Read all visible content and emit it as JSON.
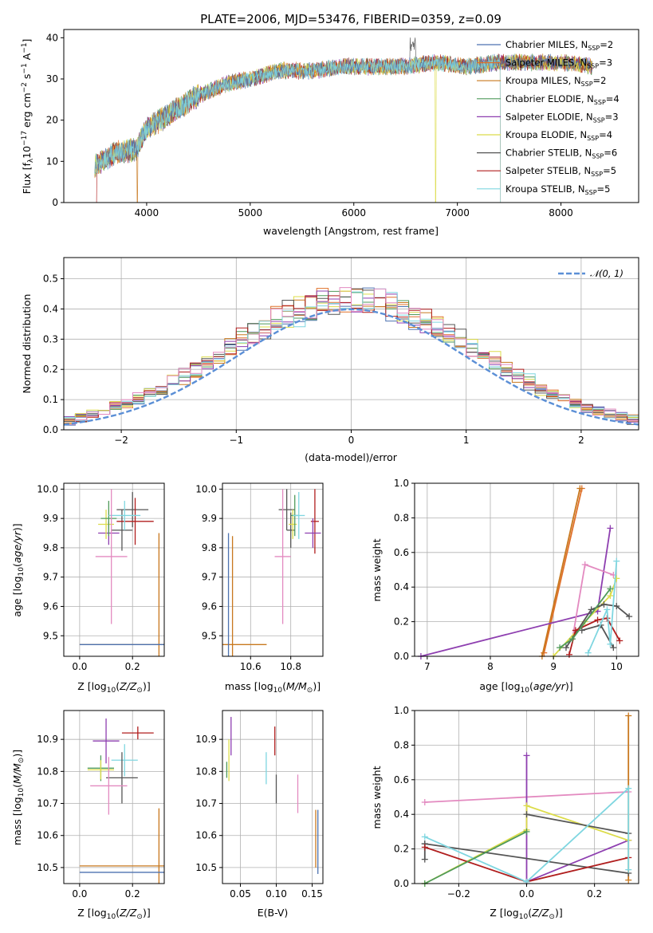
{
  "colors": {
    "Chabrier MILES": "#4c72b0",
    "Salpeter MILES": "#e0702a",
    "Kroupa MILES": "#c8781e",
    "Chabrier ELODIE": "#4f9a5a",
    "Salpeter ELODIE": "#8e3fb0",
    "Kroupa ELODIE": "#dcdc4a",
    "Chabrier STELIB": "#555555",
    "Salpeter STELIB": "#b01e1e",
    "Kroupa STELIB": "#7fd6e0",
    "pink": "#e38ac0",
    "gaussian": "#5b8fd6"
  },
  "legend": [
    {
      "model": "Chabrier MILES",
      "n": "2"
    },
    {
      "model": "Salpeter MILES",
      "n": "3"
    },
    {
      "model": "Kroupa MILES",
      "n": "2"
    },
    {
      "model": "Chabrier ELODIE",
      "n": "4"
    },
    {
      "model": "Salpeter ELODIE",
      "n": "3"
    },
    {
      "model": "Kroupa ELODIE",
      "n": "4"
    },
    {
      "model": "Chabrier STELIB",
      "n": "6"
    },
    {
      "model": "Salpeter STELIB",
      "n": "5"
    },
    {
      "model": "Kroupa STELIB",
      "n": "5"
    }
  ],
  "chart_data": [
    {
      "type": "line",
      "title": "PLATE=2006, MJD=53476, FIBERID=0359, z=0.09",
      "xlabel": "wavelength [Angstrom, rest frame]",
      "ylabel": "Flux [f",
      "xlim": [
        3200,
        8750
      ],
      "ylim": [
        0,
        42
      ],
      "xticks": [
        4000,
        5000,
        6000,
        7000,
        8000
      ],
      "yticks": [
        0,
        10,
        20,
        30,
        40
      ],
      "continuum": {
        "x": [
          3500,
          3700,
          3900,
          4000,
          4200,
          4500,
          4800,
          5000,
          5300,
          5600,
          5900,
          6200,
          6500,
          6800,
          7100,
          7400,
          7700,
          8000,
          8300
        ],
        "y": [
          9,
          12,
          13,
          18,
          21,
          26,
          29,
          30,
          32,
          32,
          33,
          33,
          33,
          34,
          33,
          34,
          34,
          34,
          33
        ]
      },
      "drops": [
        {
          "model": "Salpeter STELIB",
          "x": 3500
        },
        {
          "model": "Kroupa MILES",
          "x": 3910
        },
        {
          "model": "Kroupa ELODIE",
          "x": 6790
        },
        {
          "model": "Salpeter MILES",
          "x": 7420
        },
        {
          "model": "Kroupa STELIB",
          "x": 7420
        }
      ],
      "legend_position": "upper right",
      "grid": false
    },
    {
      "type": "histogram",
      "xlabel": "(data-model)/error",
      "ylabel": "Normed distribution",
      "xlim": [
        -2.5,
        2.5
      ],
      "ylim": [
        0,
        0.57
      ],
      "xticks": [
        -2,
        -1,
        0,
        1,
        2
      ],
      "yticks": [
        0.0,
        0.1,
        0.2,
        0.3,
        0.4,
        0.5
      ],
      "bin_width": 0.1,
      "gaussian_label": "𝒩(0, 1)",
      "legend_position": "upper right",
      "grid": true
    },
    {
      "type": "scatter",
      "xlabel": "Z [log",
      "ylabel": "age  [log",
      "xlim": [
        -0.06,
        0.32
      ],
      "ylim": [
        9.43,
        10.02
      ],
      "xticks": [
        0.0,
        0.2
      ],
      "yticks": [
        9.5,
        9.6,
        9.7,
        9.8,
        9.9,
        10.0
      ],
      "points": [
        {
          "color": "Chabrier STELIB",
          "x": 0.16,
          "y": 9.86,
          "xerr": 0.04,
          "yerr": 0.07
        },
        {
          "color": "Chabrier STELIB",
          "x": 0.2,
          "y": 9.93,
          "xerr": 0.06,
          "yerr": 0.06
        },
        {
          "color": "Salpeter STELIB",
          "x": 0.21,
          "y": 9.89,
          "xerr": 0.07,
          "yerr": 0.08
        },
        {
          "color": "Salpeter ELODIE",
          "x": 0.11,
          "y": 9.85,
          "xerr": 0.04,
          "yerr": 0.04
        },
        {
          "color": "Kroupa ELODIE",
          "x": 0.1,
          "y": 9.88,
          "xerr": 0.03,
          "yerr": 0.05
        },
        {
          "color": "Chabrier ELODIE",
          "x": 0.11,
          "y": 9.9,
          "xerr": 0.03,
          "yerr": 0.06
        },
        {
          "color": "Kroupa STELIB",
          "x": 0.17,
          "y": 9.91,
          "xerr": 0.06,
          "yerr": 0.05
        },
        {
          "color": "pink",
          "x": 0.12,
          "y": 9.77,
          "xerr": 0.06,
          "yerr": 0.23
        },
        {
          "color": "Kroupa MILES",
          "x": 0.3,
          "y": 9.47,
          "xerr": 0.3,
          "yerr": 0.38
        },
        {
          "color": "Chabrier MILES",
          "x": 0.3,
          "y": 9.47,
          "xerr": 0.3,
          "yerr": 0.0
        }
      ]
    },
    {
      "type": "scatter",
      "xlabel": "mass [log",
      "ylabel": "",
      "xlim": [
        10.46,
        10.96
      ],
      "ylim": [
        9.43,
        10.02
      ],
      "xticks": [
        10.6,
        10.8
      ],
      "yticks": [
        9.5,
        9.6,
        9.7,
        9.8,
        9.9,
        10.0
      ],
      "points": [
        {
          "color": "Chabrier STELIB",
          "x": 10.78,
          "y": 9.93,
          "xerr": 0.04,
          "yerr": 0.07
        },
        {
          "color": "Chabrier STELIB",
          "x": 10.8,
          "y": 9.86,
          "xerr": 0.02,
          "yerr": 0.06
        },
        {
          "color": "Salpeter STELIB",
          "x": 10.92,
          "y": 9.89,
          "xerr": 0.02,
          "yerr": 0.11
        },
        {
          "color": "Salpeter ELODIE",
          "x": 10.91,
          "y": 9.85,
          "xerr": 0.04,
          "yerr": 0.05
        },
        {
          "color": "Kroupa ELODIE",
          "x": 10.81,
          "y": 9.88,
          "xerr": 0.02,
          "yerr": 0.05
        },
        {
          "color": "Chabrier ELODIE",
          "x": 10.82,
          "y": 9.91,
          "xerr": 0.02,
          "yerr": 0.07
        },
        {
          "color": "Kroupa STELIB",
          "x": 10.84,
          "y": 9.91,
          "xerr": 0.03,
          "yerr": 0.08
        },
        {
          "color": "pink",
          "x": 10.76,
          "y": 9.77,
          "xerr": 0.04,
          "yerr": 0.23
        },
        {
          "color": "Kroupa MILES",
          "x": 10.51,
          "y": 9.47,
          "xerr": 0.17,
          "yerr": 0.37
        },
        {
          "color": "Chabrier MILES",
          "x": 10.49,
          "y": 9.47,
          "xerr": 0.0,
          "yerr": 0.38
        }
      ]
    },
    {
      "type": "line",
      "xlabel": "age  [log",
      "ylabel": "mass weight",
      "xlim": [
        6.8,
        10.35
      ],
      "ylim": [
        0,
        1
      ],
      "xticks": [
        7,
        8,
        9,
        10
      ],
      "yticks": [
        0.0,
        0.2,
        0.4,
        0.6,
        0.8,
        1.0
      ],
      "series": [
        {
          "color": "Salpeter MILES",
          "x": [
            8.85,
            9.45
          ],
          "y": [
            0.02,
            0.97
          ]
        },
        {
          "color": "Kroupa MILES",
          "x": [
            8.82,
            9.42
          ],
          "y": [
            0.0,
            0.97
          ]
        },
        {
          "color": "Salpeter ELODIE",
          "x": [
            6.9,
            9.7,
            9.9
          ],
          "y": [
            0.0,
            0.26,
            0.74
          ]
        },
        {
          "color": "pink",
          "x": [
            9.3,
            9.5,
            9.95
          ],
          "y": [
            0.1,
            0.53,
            0.47
          ]
        },
        {
          "color": "Kroupa ELODIE",
          "x": [
            9.0,
            9.5,
            9.9,
            10.0
          ],
          "y": [
            0.0,
            0.2,
            0.35,
            0.45
          ]
        },
        {
          "color": "Chabrier STELIB",
          "x": [
            9.2,
            9.6,
            9.8,
            10.0,
            10.2
          ],
          "y": [
            0.05,
            0.27,
            0.3,
            0.29,
            0.23
          ]
        },
        {
          "color": "Chabrier STELIB",
          "x": [
            9.45,
            9.75,
            9.95
          ],
          "y": [
            0.15,
            0.18,
            0.05
          ]
        },
        {
          "color": "Salpeter STELIB",
          "x": [
            9.25,
            9.35,
            9.7,
            9.85,
            10.05
          ],
          "y": [
            0.01,
            0.15,
            0.21,
            0.22,
            0.09
          ]
        },
        {
          "color": "Kroupa STELIB",
          "x": [
            9.55,
            9.85,
            9.9,
            10.0
          ],
          "y": [
            0.02,
            0.27,
            0.07,
            0.55
          ]
        },
        {
          "color": "Chabrier ELODIE",
          "x": [
            9.1,
            9.3,
            9.9
          ],
          "y": [
            0.05,
            0.1,
            0.39
          ]
        }
      ]
    },
    {
      "type": "scatter",
      "xlabel": "Z [log",
      "ylabel": "mass [log",
      "xlim": [
        -0.06,
        0.32
      ],
      "ylim": [
        10.45,
        10.99
      ],
      "xticks": [
        0.0,
        0.2
      ],
      "yticks": [
        10.5,
        10.6,
        10.7,
        10.8,
        10.9
      ],
      "points": [
        {
          "color": "Salpeter STELIB",
          "x": 0.22,
          "y": 10.92,
          "xerr": 0.06,
          "yerr": 0.02
        },
        {
          "color": "Salpeter ELODIE",
          "x": 0.1,
          "y": 10.895,
          "xerr": 0.05,
          "yerr": 0.07
        },
        {
          "color": "Kroupa STELIB",
          "x": 0.17,
          "y": 10.835,
          "xerr": 0.05,
          "yerr": 0.05
        },
        {
          "color": "Chabrier ELODIE",
          "x": 0.08,
          "y": 10.81,
          "xerr": 0.05,
          "yerr": 0.04
        },
        {
          "color": "Kroupa ELODIE",
          "x": 0.08,
          "y": 10.805,
          "xerr": 0.05,
          "yerr": 0.03
        },
        {
          "color": "Chabrier STELIB",
          "x": 0.16,
          "y": 10.78,
          "xerr": 0.06,
          "yerr": 0.08
        },
        {
          "color": "pink",
          "x": 0.11,
          "y": 10.755,
          "xerr": 0.07,
          "yerr": 0.09
        },
        {
          "color": "Kroupa MILES",
          "x": 0.3,
          "y": 10.505,
          "xerr": 0.3,
          "yerr": 0.18
        },
        {
          "color": "Chabrier MILES",
          "x": 0.3,
          "y": 10.485,
          "xerr": 0.3,
          "yerr": 0.0
        }
      ]
    },
    {
      "type": "scatter",
      "xlabel": "E(B-V)",
      "ylabel": "",
      "xlim": [
        0.025,
        0.165
      ],
      "ylim": [
        10.45,
        10.99
      ],
      "xticks": [
        0.05,
        0.1,
        0.15
      ],
      "yticks": [
        10.5,
        10.6,
        10.7,
        10.8,
        10.9
      ],
      "vlines": [
        {
          "color": "Kroupa ELODIE",
          "x": 0.034,
          "y0": 10.77,
          "y1": 10.9
        },
        {
          "color": "Chabrier ELODIE",
          "x": 0.031,
          "y0": 10.78,
          "y1": 10.83
        },
        {
          "color": "Salpeter ELODIE",
          "x": 0.037,
          "y0": 10.85,
          "y1": 10.97
        },
        {
          "color": "Kroupa STELIB",
          "x": 0.086,
          "y0": 10.76,
          "y1": 10.86
        },
        {
          "color": "Salpeter STELIB",
          "x": 0.098,
          "y0": 10.85,
          "y1": 10.94
        },
        {
          "color": "Chabrier STELIB",
          "x": 0.1,
          "y0": 10.7,
          "y1": 10.79
        },
        {
          "color": "pink",
          "x": 0.13,
          "y0": 10.67,
          "y1": 10.79
        },
        {
          "color": "Kroupa MILES",
          "x": 0.155,
          "y0": 10.5,
          "y1": 10.68
        },
        {
          "color": "Chabrier MILES",
          "x": 0.158,
          "y0": 10.48,
          "y1": 10.68
        }
      ]
    },
    {
      "type": "line",
      "xlabel": "Z [log",
      "ylabel": "mass weight",
      "xlim": [
        -0.33,
        0.33
      ],
      "ylim": [
        0,
        1
      ],
      "xticks": [
        -0.2,
        0.0,
        0.2
      ],
      "yticks": [
        0.0,
        0.2,
        0.4,
        0.6,
        0.8,
        1.0
      ],
      "series": [
        {
          "color": "pink",
          "x": [
            -0.3,
            0.3
          ],
          "y": [
            0.47,
            0.53
          ]
        },
        {
          "color": "Kroupa MILES",
          "x": [
            0.3,
            0.3
          ],
          "y": [
            0.02,
            0.97
          ]
        },
        {
          "color": "Salpeter ELODIE",
          "x": [
            0.0,
            0.0,
            0.3
          ],
          "y": [
            0.74,
            0.01,
            0.25
          ]
        },
        {
          "color": "Kroupa ELODIE",
          "x": [
            -0.3,
            0.0,
            0.0,
            0.3
          ],
          "y": [
            0.0,
            0.31,
            0.45,
            0.25
          ]
        },
        {
          "color": "Chabrier STELIB",
          "x": [
            -0.3,
            0.3
          ],
          "y": [
            0.23,
            0.06
          ]
        },
        {
          "color": "Chabrier STELIB",
          "x": [
            0.0,
            0.3
          ],
          "y": [
            0.4,
            0.29
          ]
        },
        {
          "color": "Chabrier STELIB",
          "x": [
            -0.3,
            -0.3
          ],
          "y": [
            0.14,
            0.23
          ]
        },
        {
          "color": "Salpeter STELIB",
          "x": [
            -0.3,
            0.0,
            0.3
          ],
          "y": [
            0.21,
            0.01,
            0.15
          ]
        },
        {
          "color": "Kroupa STELIB",
          "x": [
            -0.3,
            0.0,
            0.3,
            0.3
          ],
          "y": [
            0.27,
            0.01,
            0.55,
            0.08
          ]
        },
        {
          "color": "Chabrier ELODIE",
          "x": [
            -0.3,
            0.0
          ],
          "y": [
            0.0,
            0.3
          ]
        }
      ]
    }
  ]
}
